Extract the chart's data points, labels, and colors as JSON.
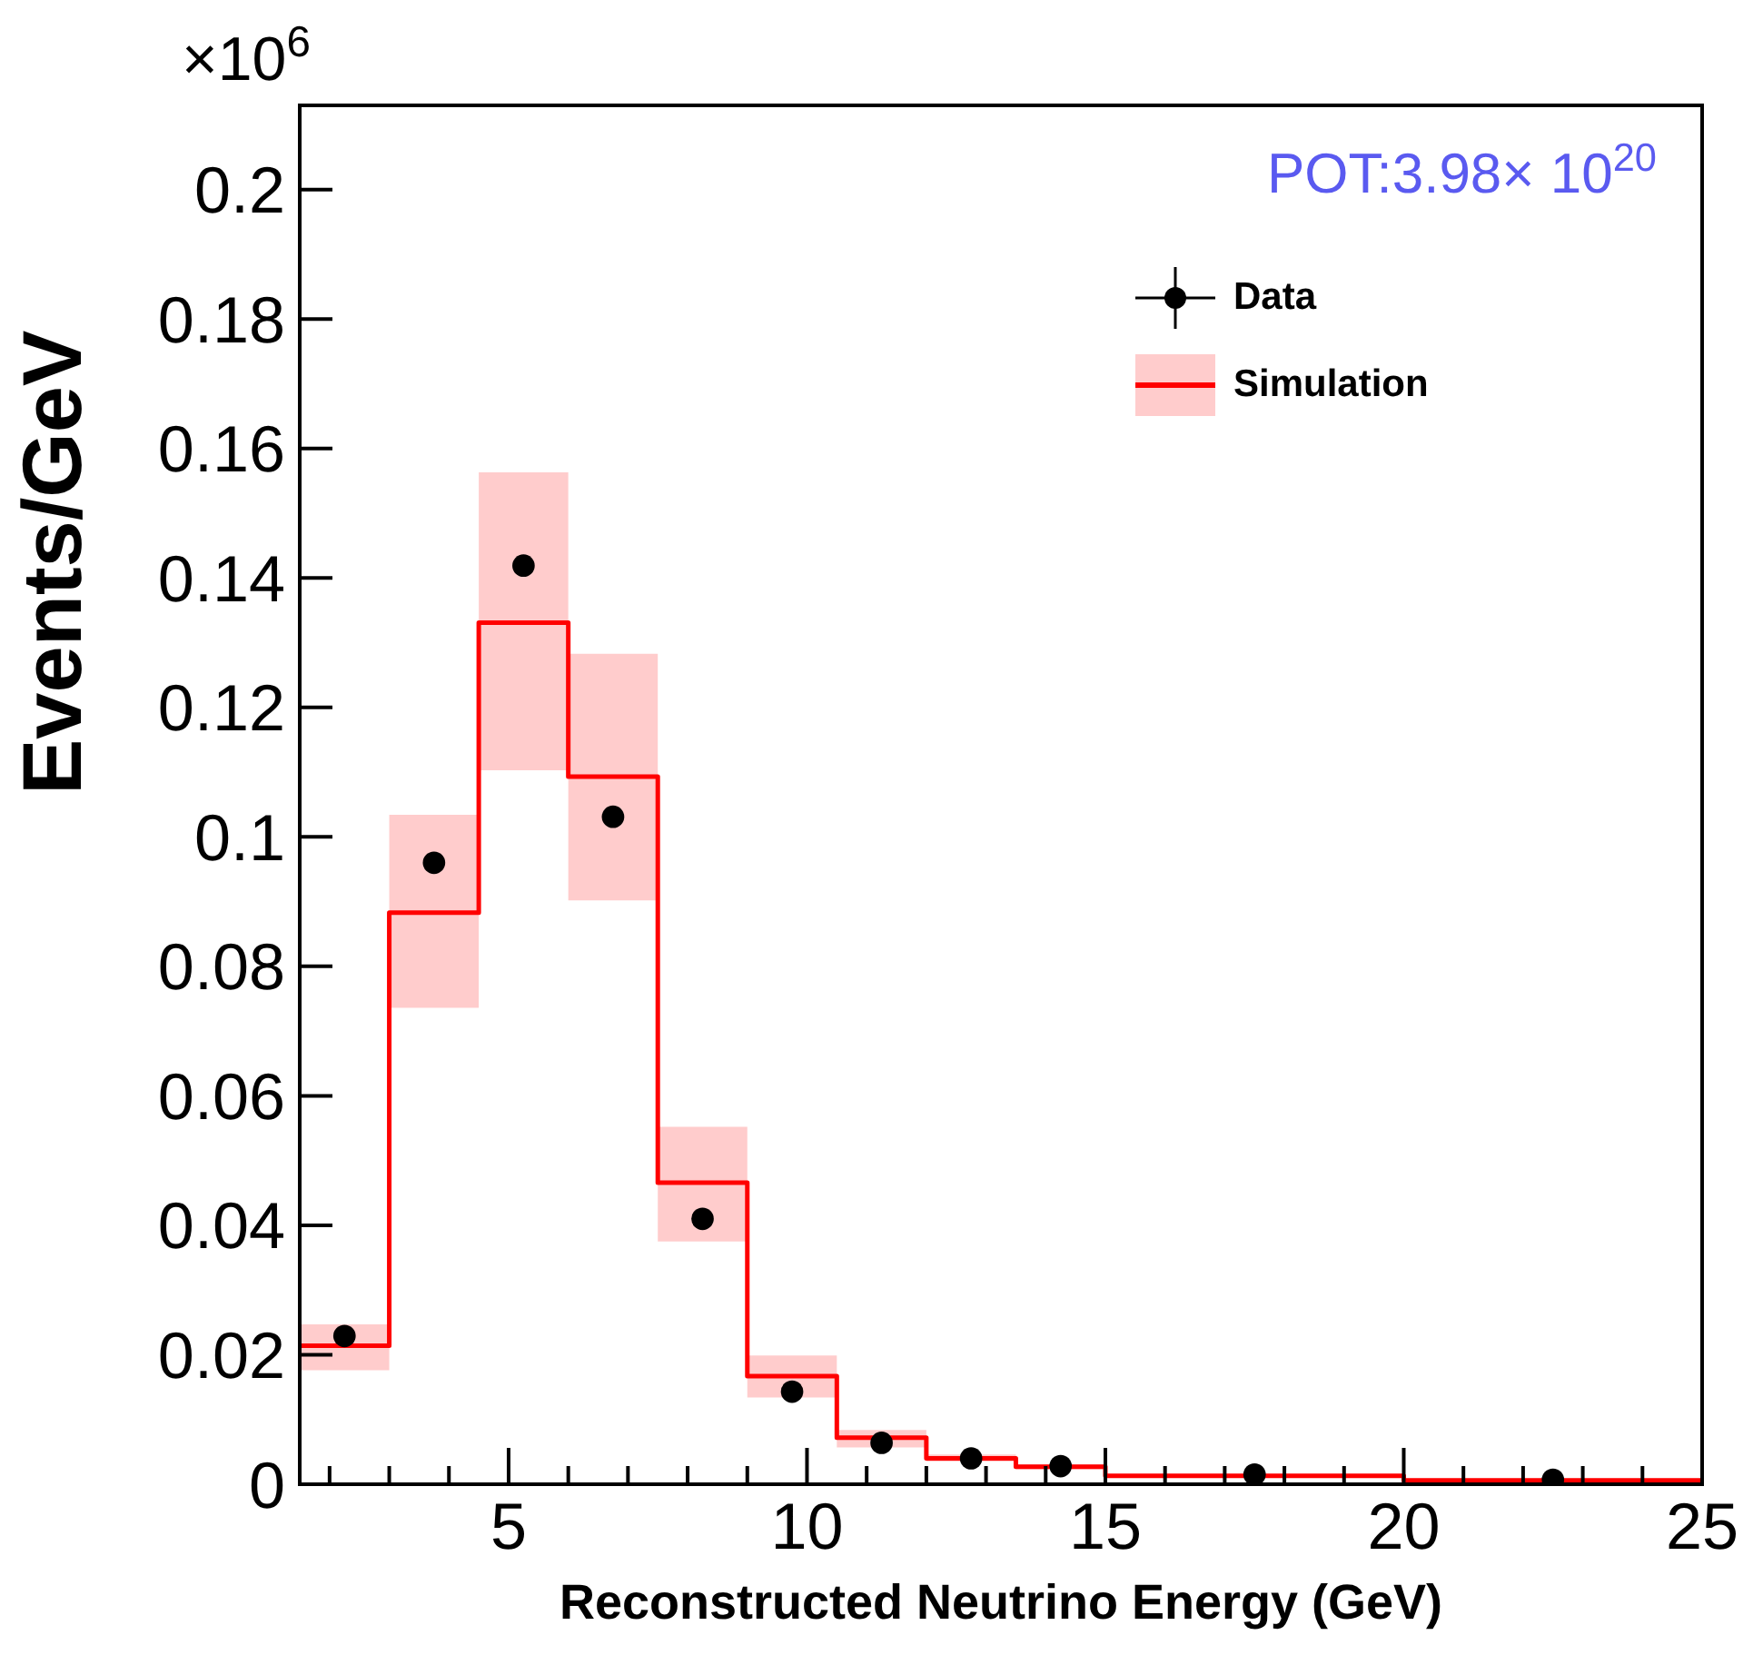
{
  "chart_data": {
    "type": "step",
    "xlabel": "Reconstructed Neutrino Energy (GeV)",
    "ylabel": "Events/GeV",
    "annotations": [
      "×10$^{6}$",
      "POT:3.98× 10$^{20}$"
    ],
    "series": [
      {
        "name": "Data",
        "type": "scatter",
        "marker": "circle",
        "color": "#000000",
        "x": [
          2.25,
          3.75,
          5.25,
          6.75,
          8.25,
          9.75,
          11.25,
          12.75,
          14.25,
          17.5,
          22.5
        ],
        "values": [
          0.0229,
          0.096,
          0.1419,
          0.1031,
          0.041,
          0.0143,
          0.0064,
          0.004,
          0.0028,
          0.0015,
          0.0007
        ]
      },
      {
        "name": "Simulation",
        "color": "#ff0000",
        "x": [
          1.5,
          3,
          4.5,
          6,
          7.5,
          9,
          10.5,
          12,
          13.5,
          15,
          20,
          25
        ],
        "values": [
          0.0214,
          0.0883,
          0.1331,
          0.1093,
          0.0466,
          0.0167,
          0.0072,
          0.004,
          0.0027,
          0.0013,
          0.0006,
          0.0006
        ],
        "lower": [
          0.0176,
          0.0736,
          0.1103,
          0.0902,
          0.0375,
          0.0134,
          0.0057,
          0.0035,
          0.0023,
          0.0011,
          0.0005,
          0.0005
        ],
        "upper": [
          0.0247,
          0.1034,
          0.1563,
          0.1283,
          0.0552,
          0.0199,
          0.0084,
          0.0046,
          0.0031,
          0.0015,
          0.0007,
          0.0007
        ]
      }
    ],
    "xlim": [
      1.5,
      25
    ],
    "xticks": [
      {
        "value": 2,
        "label": null
      },
      {
        "value": 3,
        "label": null
      },
      {
        "value": 4,
        "label": null
      },
      5,
      {
        "value": 6,
        "label": null
      },
      {
        "value": 7,
        "label": null
      },
      {
        "value": 8,
        "label": null
      },
      {
        "value": 9,
        "label": null
      },
      10,
      {
        "value": 11,
        "label": null
      },
      {
        "value": 12,
        "label": null
      },
      {
        "value": 13,
        "label": null
      },
      {
        "value": 14,
        "label": null
      },
      15,
      {
        "value": 16,
        "label": null
      },
      {
        "value": 17,
        "label": null
      },
      {
        "value": 18,
        "label": null
      },
      {
        "value": 19,
        "label": null
      },
      20,
      {
        "value": 21,
        "label": null
      },
      {
        "value": 22,
        "label": null
      },
      {
        "value": 23,
        "label": null
      },
      {
        "value": 24,
        "label": null
      },
      25
    ],
    "ylim": [
      0,
      0.213
    ],
    "yticks": [
      0,
      0.02,
      0.04,
      0.06,
      0.08,
      0.1,
      0.12,
      0.14,
      0.16,
      0.18,
      0.2
    ],
    "legend": "top right"
  }
}
